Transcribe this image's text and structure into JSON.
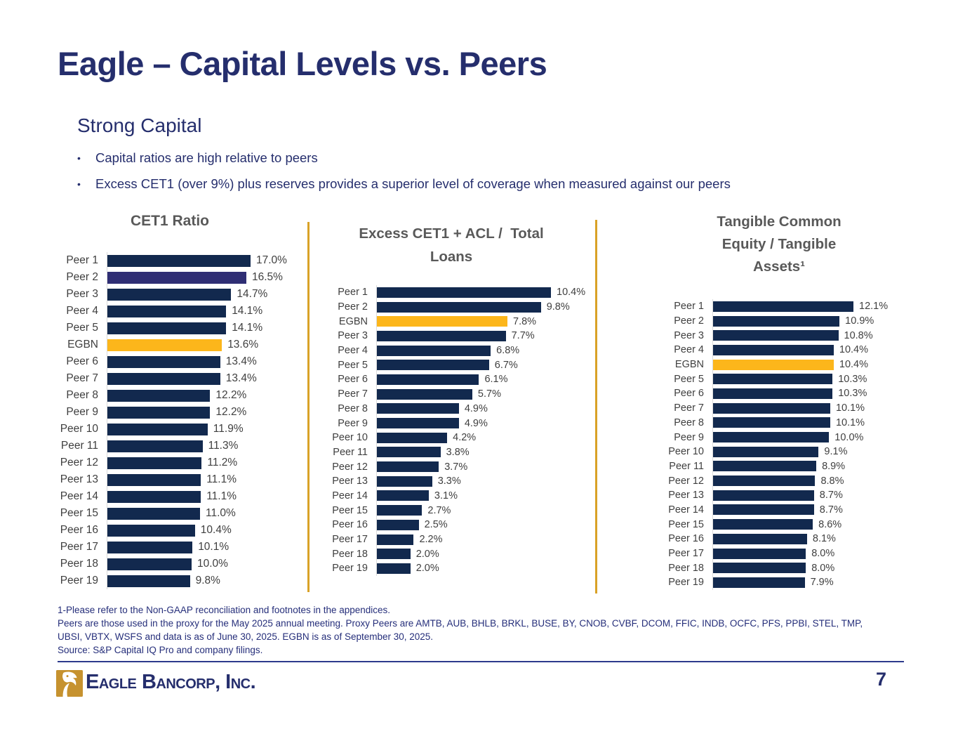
{
  "slide": {
    "title": "Eagle – Capital Levels vs. Peers",
    "subtitle": "Strong Capital",
    "bullet_char": "•",
    "bullets": [
      "Capital ratios are high relative to peers",
      "Excess CET1 (over 9%) plus reserves provides a superior level of coverage when measured against our peers"
    ],
    "footnotes": [
      "1-Please refer to the Non-GAAP reconciliation and footnotes in the appendices.",
      "Peers are those used in the proxy for the May 2025 annual meeting.  Proxy Peers are AMTB, AUB, BHLB, BRKL, BUSE, BY, CNOB, CVBF, DCOM, FFIC, INDB, OCFC, PFS, PPBI, STEL, TMP,",
      "UBSI, VBTX, WSFS and data is as of June 30, 2025.  EGBN is as of September 30, 2025.",
      "Source: S&P Capital IQ Pro and company filings."
    ],
    "logo_text": "Eagle Bancorp, Inc.",
    "page_number": "7"
  },
  "colors": {
    "heading_navy": "#252e6d",
    "bar_navy": "#12294e",
    "bar_indigo": "#2f2e74",
    "bar_gold": "#fcb61b",
    "divider_gold": "#d9a227",
    "chart_title_gray": "#595959",
    "label_gray": "#3f3f3f",
    "logo_gold": "#c6922f"
  },
  "chart_data": [
    {
      "type": "bar",
      "orientation": "horizontal",
      "title": "CET1 Ratio",
      "title_lines": [
        "CET1 Ratio"
      ],
      "xlabel": "",
      "ylabel": "",
      "xlim": [
        0,
        17.0
      ],
      "grid": false,
      "legend": false,
      "data_labels": true,
      "value_format": "percent_1dp",
      "categories": [
        "Peer 1",
        "Peer 2",
        "Peer 3",
        "Peer 4",
        "Peer 5",
        "EGBN",
        "Peer 6",
        "Peer 7",
        "Peer 8",
        "Peer 9",
        "Peer 10",
        "Peer 11",
        "Peer 12",
        "Peer 13",
        "Peer 14",
        "Peer 15",
        "Peer 16",
        "Peer 17",
        "Peer 18",
        "Peer 19"
      ],
      "values": [
        17.0,
        16.5,
        14.7,
        14.1,
        14.1,
        13.6,
        13.4,
        13.4,
        12.2,
        12.2,
        11.9,
        11.3,
        11.2,
        11.1,
        11.1,
        11.0,
        10.4,
        10.1,
        10.0,
        9.8
      ],
      "variants": {
        "EGBN": "gold",
        "Peer 2": "indigo"
      }
    },
    {
      "type": "bar",
      "orientation": "horizontal",
      "title": "Excess CET1 + ACL /  Total Loans",
      "title_lines": [
        "Excess CET1 + ACL /  Total",
        "Loans"
      ],
      "xlabel": "",
      "ylabel": "",
      "xlim": [
        0,
        10.4
      ],
      "grid": false,
      "legend": false,
      "data_labels": true,
      "value_format": "percent_1dp",
      "categories": [
        "Peer 1",
        "Peer 2",
        "EGBN",
        "Peer 3",
        "Peer 4",
        "Peer 5",
        "Peer 6",
        "Peer 7",
        "Peer 8",
        "Peer 9",
        "Peer 10",
        "Peer 11",
        "Peer 12",
        "Peer 13",
        "Peer 14",
        "Peer 15",
        "Peer 16",
        "Peer 17",
        "Peer 18",
        "Peer 19"
      ],
      "values": [
        10.4,
        9.8,
        7.8,
        7.7,
        6.8,
        6.7,
        6.1,
        5.7,
        4.9,
        4.9,
        4.2,
        3.8,
        3.7,
        3.3,
        3.1,
        2.7,
        2.5,
        2.2,
        2.0,
        2.0
      ],
      "variants": {
        "EGBN": "gold"
      }
    },
    {
      "type": "bar",
      "orientation": "horizontal",
      "title": "Tangible Common Equity / Tangible Assets¹",
      "title_lines": [
        "Tangible Common",
        "Equity / Tangible",
        "Assets¹"
      ],
      "xlabel": "",
      "ylabel": "",
      "xlim": [
        0,
        12.1
      ],
      "grid": false,
      "legend": false,
      "data_labels": true,
      "value_format": "percent_1dp",
      "categories": [
        "Peer 1",
        "Peer 2",
        "Peer 3",
        "Peer 4",
        "EGBN",
        "Peer 5",
        "Peer 6",
        "Peer 7",
        "Peer 8",
        "Peer 9",
        "Peer 10",
        "Peer 11",
        "Peer 12",
        "Peer 13",
        "Peer 14",
        "Peer 15",
        "Peer 16",
        "Peer 17",
        "Peer 18",
        "Peer 19"
      ],
      "values": [
        12.1,
        10.9,
        10.8,
        10.4,
        10.4,
        10.3,
        10.3,
        10.1,
        10.1,
        10.0,
        9.1,
        8.9,
        8.8,
        8.7,
        8.7,
        8.6,
        8.1,
        8.0,
        8.0,
        7.9
      ],
      "variants": {
        "EGBN": "gold"
      }
    }
  ]
}
